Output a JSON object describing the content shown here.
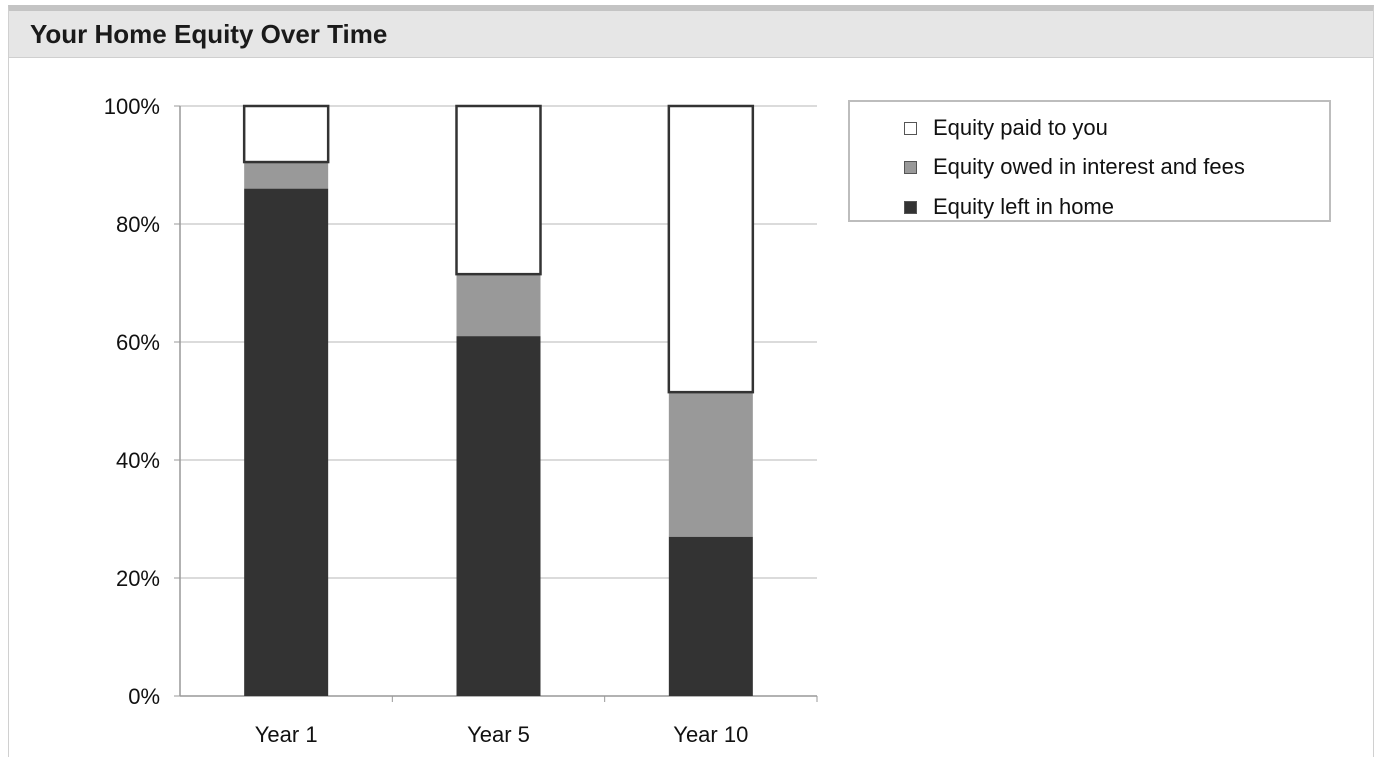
{
  "header": {
    "title": "Your Home Equity Over Time"
  },
  "chart_data": {
    "type": "bar",
    "stacked": true,
    "percent": true,
    "categories": [
      "Year 1",
      "Year 5",
      "Year 10"
    ],
    "series": [
      {
        "name": "Equity left in home",
        "values": [
          86,
          61,
          27
        ],
        "color": "#333333"
      },
      {
        "name": "Equity owed in interest and fees",
        "values": [
          4.5,
          10.5,
          24.5
        ],
        "color": "#999999"
      },
      {
        "name": "Equity paid to you",
        "values": [
          9.5,
          28.5,
          48.5
        ],
        "color": "#ffffff"
      }
    ],
    "yticks": [
      "0%",
      "20%",
      "40%",
      "60%",
      "80%",
      "100%"
    ],
    "ylim": [
      0,
      100
    ],
    "grid": true,
    "legend_position": "top-right"
  },
  "legend": [
    {
      "label": "Equity paid to you",
      "color": "#ffffff"
    },
    {
      "label": "Equity owed in interest and fees",
      "color": "#999999"
    },
    {
      "label": "Equity left in home",
      "color": "#333333"
    }
  ]
}
